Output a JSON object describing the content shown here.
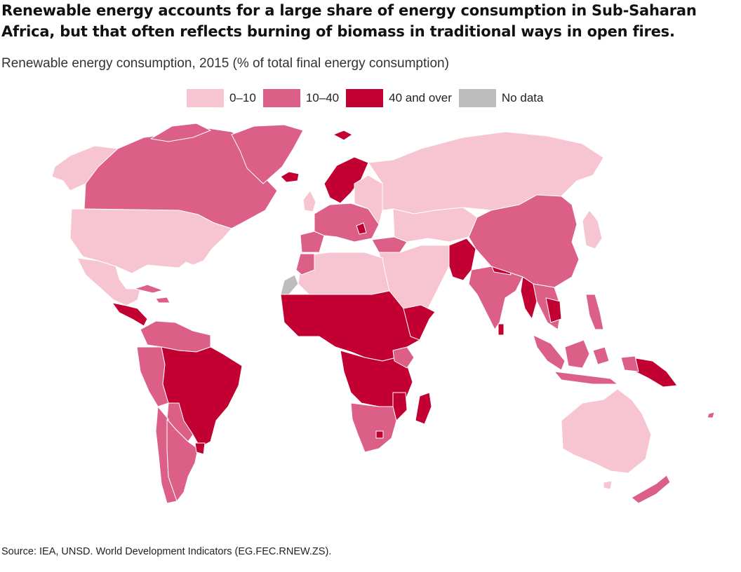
{
  "title": "Renewable energy accounts for a large share of energy consumption in Sub-Saharan Africa, but that often reflects burning of biomass in traditional ways in open fires.",
  "subtitle": "Renewable energy consumption, 2015 (% of total final energy consumption)",
  "legend": [
    {
      "label": "0–10",
      "color": "#f6c5d1"
    },
    {
      "label": "10–40",
      "color": "#db5f86"
    },
    {
      "label": "40 and over",
      "color": "#c20032"
    },
    {
      "label": "No data",
      "color": "#bdbdbd"
    }
  ],
  "source": "Source: IEA, UNSD. World Development Indicators (EG.FEC.RNEW.ZS).",
  "colors": {
    "low": "#f6c5d1",
    "mid": "#db5f86",
    "high": "#c20032",
    "nodata": "#bdbdbd",
    "border": "#ffffff"
  }
}
